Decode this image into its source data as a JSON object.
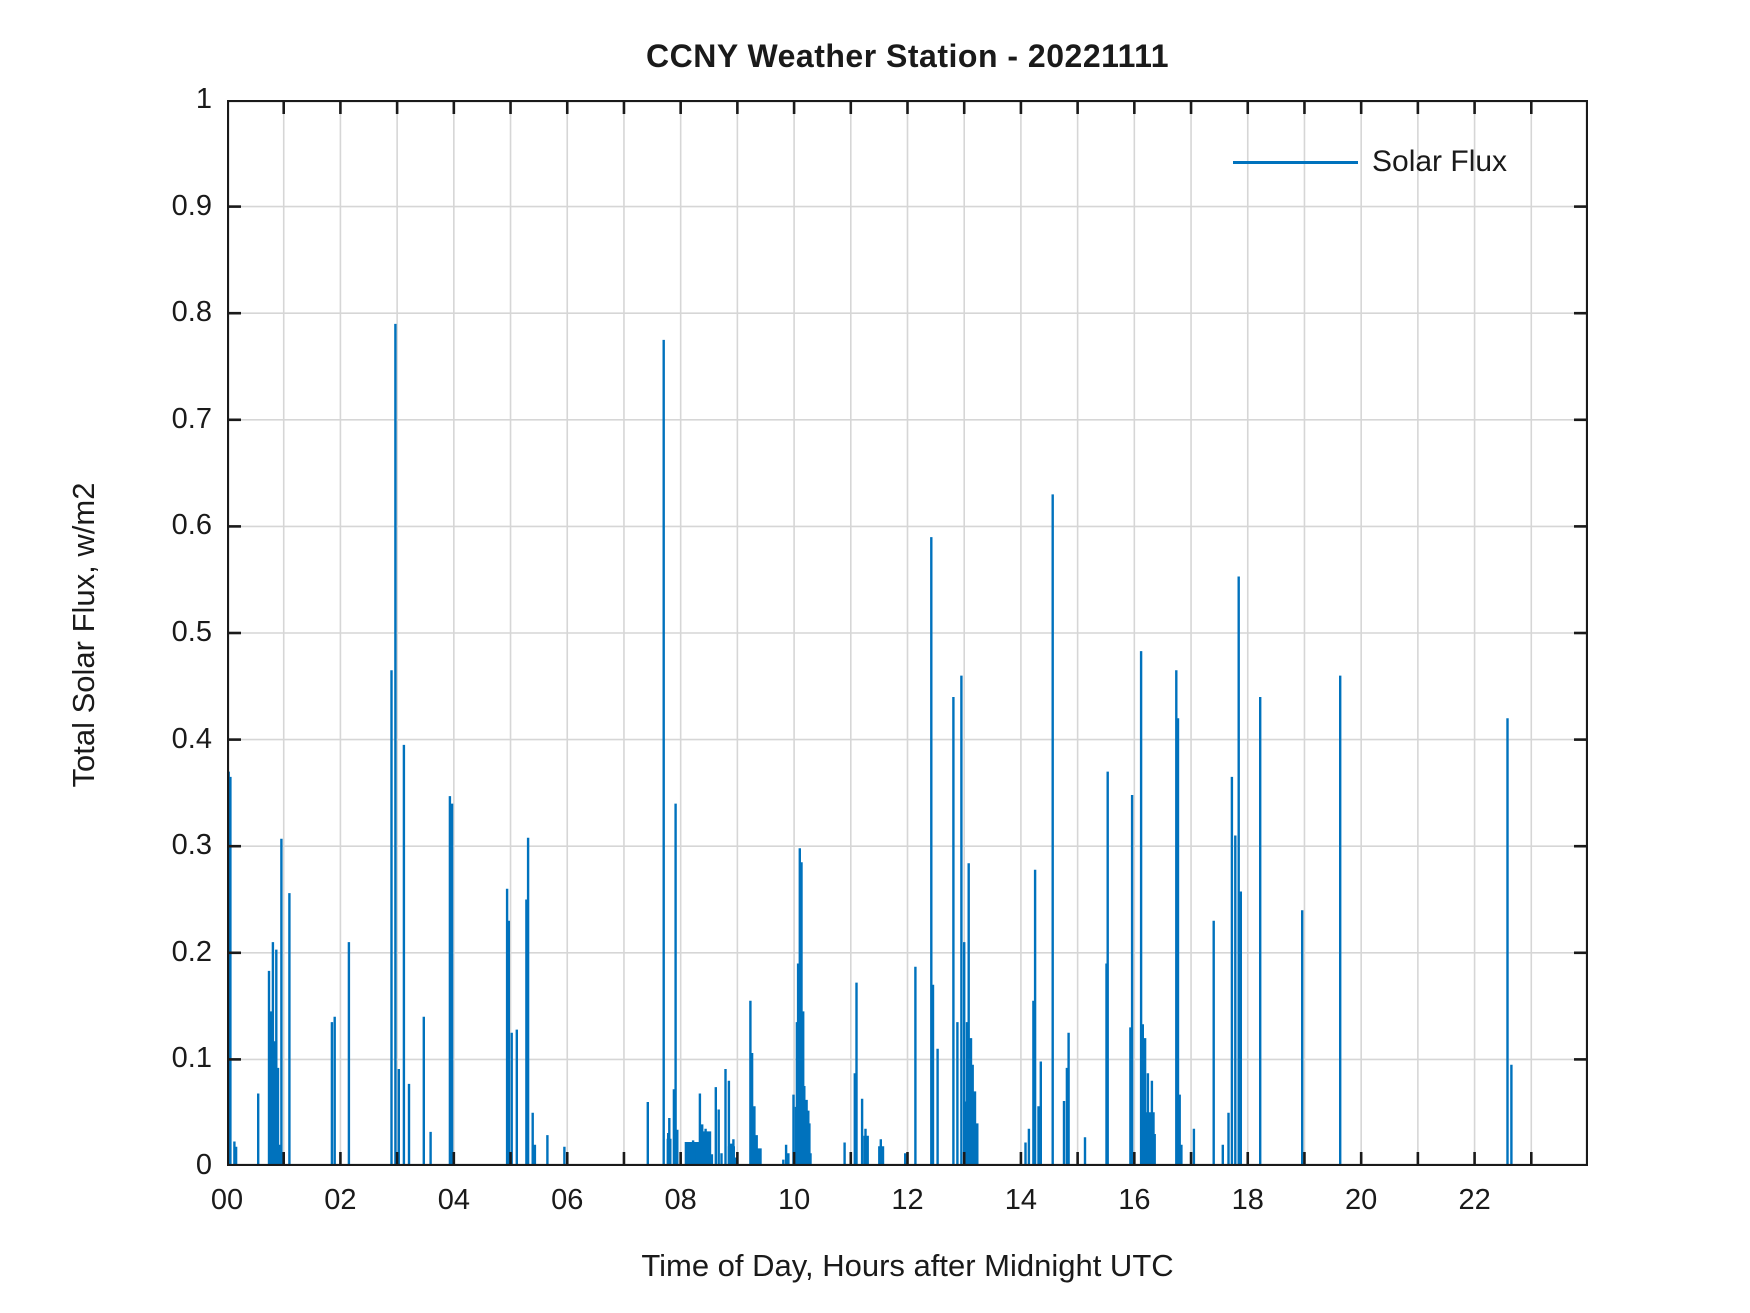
{
  "chart_data": {
    "type": "line",
    "title": "CCNY Weather Station - 20221111",
    "xlabel": "Time of Day, Hours after Midnight UTC",
    "ylabel": "Total Solar Flux, w/m2",
    "series_name": "Solar Flux",
    "line_color": "#0072BD",
    "grid_color": "#d6d6d6",
    "axis_color": "#1a1a1a",
    "xlim": [
      0,
      24
    ],
    "ylim": [
      0,
      1
    ],
    "grid": "on",
    "legend_position": "northeast",
    "xtick_step_hours": 1,
    "xtick_labels": [
      {
        "value": 0,
        "label": "00"
      },
      {
        "value": 2,
        "label": "02"
      },
      {
        "value": 4,
        "label": "04"
      },
      {
        "value": 6,
        "label": "06"
      },
      {
        "value": 8,
        "label": "08"
      },
      {
        "value": 10,
        "label": "10"
      },
      {
        "value": 12,
        "label": "12"
      },
      {
        "value": 14,
        "label": "14"
      },
      {
        "value": 16,
        "label": "16"
      },
      {
        "value": 18,
        "label": "18"
      },
      {
        "value": 20,
        "label": "20"
      },
      {
        "value": 22,
        "label": "22"
      }
    ],
    "ytick_labels": [
      {
        "value": 0,
        "label": "0"
      },
      {
        "value": 0.1,
        "label": "0.1"
      },
      {
        "value": 0.2,
        "label": "0.2"
      },
      {
        "value": 0.3,
        "label": "0.3"
      },
      {
        "value": 0.4,
        "label": "0.4"
      },
      {
        "value": 0.5,
        "label": "0.5"
      },
      {
        "value": 0.6,
        "label": "0.6"
      },
      {
        "value": 0.7,
        "label": "0.7"
      },
      {
        "value": 0.8,
        "label": "0.8"
      },
      {
        "value": 0.9,
        "label": "0.9"
      },
      {
        "value": 1,
        "label": "1"
      }
    ],
    "spikes": [
      [
        0.03,
        0.37
      ],
      [
        0.06,
        0.365
      ],
      [
        0.13,
        0.023
      ],
      [
        0.16,
        0.018
      ],
      [
        0.55,
        0.068
      ],
      [
        0.74,
        0.183
      ],
      [
        0.78,
        0.145
      ],
      [
        0.81,
        0.21
      ],
      [
        0.84,
        0.117
      ],
      [
        0.87,
        0.203
      ],
      [
        0.9,
        0.092
      ],
      [
        0.93,
        0.02
      ],
      [
        0.96,
        0.307
      ],
      [
        1.1,
        0.256
      ],
      [
        1.85,
        0.135
      ],
      [
        1.9,
        0.14
      ],
      [
        2.15,
        0.21
      ],
      [
        2.9,
        0.465
      ],
      [
        2.97,
        0.79
      ],
      [
        3.03,
        0.091
      ],
      [
        3.12,
        0.395
      ],
      [
        3.21,
        0.077
      ],
      [
        3.47,
        0.14
      ],
      [
        3.59,
        0.032
      ],
      [
        3.93,
        0.347
      ],
      [
        3.97,
        0.34
      ],
      [
        4.94,
        0.26
      ],
      [
        4.97,
        0.23
      ],
      [
        5.02,
        0.125
      ],
      [
        5.11,
        0.128
      ],
      [
        5.28,
        0.25
      ],
      [
        5.31,
        0.308
      ],
      [
        5.39,
        0.05
      ],
      [
        5.43,
        0.02
      ],
      [
        5.65,
        0.029
      ],
      [
        5.95,
        0.018
      ],
      [
        7.42,
        0.06
      ],
      [
        7.7,
        0.775
      ],
      [
        7.78,
        0.031
      ],
      [
        7.8,
        0.045
      ],
      [
        7.88,
        0.072
      ],
      [
        7.91,
        0.34
      ],
      [
        7.94,
        0.034
      ],
      [
        8.14,
        0.021
      ],
      [
        8.22,
        0.024
      ],
      [
        8.28,
        0.018
      ],
      [
        8.34,
        0.068
      ],
      [
        8.38,
        0.039
      ],
      [
        8.44,
        0.035
      ],
      [
        8.55,
        0.011
      ],
      [
        8.62,
        0.074
      ],
      [
        8.67,
        0.053
      ],
      [
        8.72,
        0.012
      ],
      [
        8.79,
        0.091
      ],
      [
        8.85,
        0.08
      ],
      [
        8.89,
        0.021
      ],
      [
        8.93,
        0.025
      ],
      [
        8.98,
        0.008
      ],
      [
        9.23,
        0.155
      ],
      [
        9.26,
        0.106
      ],
      [
        9.3,
        0.056
      ],
      [
        9.34,
        0.029
      ],
      [
        9.81,
        0.006
      ],
      [
        9.86,
        0.02
      ],
      [
        9.9,
        0.012
      ],
      [
        9.99,
        0.067
      ],
      [
        10.05,
        0.135
      ],
      [
        10.07,
        0.19
      ],
      [
        10.1,
        0.298
      ],
      [
        10.13,
        0.285
      ],
      [
        10.16,
        0.145
      ],
      [
        10.18,
        0.075
      ],
      [
        10.22,
        0.062
      ],
      [
        10.25,
        0.052
      ],
      [
        10.27,
        0.04
      ],
      [
        10.29,
        0.012
      ],
      [
        10.89,
        0.022
      ],
      [
        11.0,
        0.01
      ],
      [
        11.07,
        0.087
      ],
      [
        11.1,
        0.172
      ],
      [
        11.2,
        0.063
      ],
      [
        11.26,
        0.035
      ],
      [
        11.53,
        0.025
      ],
      [
        11.96,
        0.012
      ],
      [
        12.14,
        0.187
      ],
      [
        12.42,
        0.59
      ],
      [
        12.45,
        0.17
      ],
      [
        12.53,
        0.11
      ],
      [
        12.81,
        0.44
      ],
      [
        12.88,
        0.135
      ],
      [
        12.95,
        0.46
      ],
      [
        13.0,
        0.21
      ],
      [
        13.05,
        0.135
      ],
      [
        13.08,
        0.284
      ],
      [
        13.12,
        0.12
      ],
      [
        13.15,
        0.095
      ],
      [
        13.19,
        0.07
      ],
      [
        13.23,
        0.04
      ],
      [
        14.08,
        0.022
      ],
      [
        14.14,
        0.035
      ],
      [
        14.22,
        0.155
      ],
      [
        14.25,
        0.278
      ],
      [
        14.31,
        0.056
      ],
      [
        14.35,
        0.098
      ],
      [
        14.56,
        0.63
      ],
      [
        14.76,
        0.061
      ],
      [
        14.81,
        0.092
      ],
      [
        14.84,
        0.125
      ],
      [
        15.13,
        0.027
      ],
      [
        15.51,
        0.19
      ],
      [
        15.53,
        0.37
      ],
      [
        15.93,
        0.13
      ],
      [
        15.96,
        0.348
      ],
      [
        16.12,
        0.483
      ],
      [
        16.15,
        0.133
      ],
      [
        16.19,
        0.12
      ],
      [
        16.24,
        0.087
      ],
      [
        16.31,
        0.08
      ],
      [
        16.36,
        0.03
      ],
      [
        16.74,
        0.465
      ],
      [
        16.77,
        0.42
      ],
      [
        16.8,
        0.067
      ],
      [
        16.83,
        0.02
      ],
      [
        17.05,
        0.035
      ],
      [
        17.4,
        0.23
      ],
      [
        17.56,
        0.02
      ],
      [
        17.66,
        0.05
      ],
      [
        17.72,
        0.365
      ],
      [
        17.78,
        0.31
      ],
      [
        17.84,
        0.553
      ],
      [
        17.87,
        0.257
      ],
      [
        18.22,
        0.44
      ],
      [
        18.96,
        0.24
      ],
      [
        19.63,
        0.46
      ],
      [
        22.58,
        0.42
      ],
      [
        22.65,
        0.095
      ]
    ],
    "bands": [
      [
        7.76,
        7.83,
        0.025
      ],
      [
        8.08,
        8.33,
        0.022
      ],
      [
        8.4,
        8.53,
        0.032
      ],
      [
        8.84,
        8.95,
        0.018
      ],
      [
        9.28,
        9.42,
        0.016
      ],
      [
        10.02,
        10.21,
        0.055
      ],
      [
        10.06,
        10.16,
        0.13
      ],
      [
        11.23,
        11.31,
        0.028
      ],
      [
        11.49,
        11.58,
        0.018
      ],
      [
        12.99,
        13.1,
        0.06
      ],
      [
        16.13,
        16.35,
        0.05
      ],
      [
        17.85,
        17.89,
        0.257
      ],
      [
        0.76,
        0.9,
        0.04
      ]
    ]
  },
  "layout_text": {
    "legend_label": "Solar Flux"
  }
}
